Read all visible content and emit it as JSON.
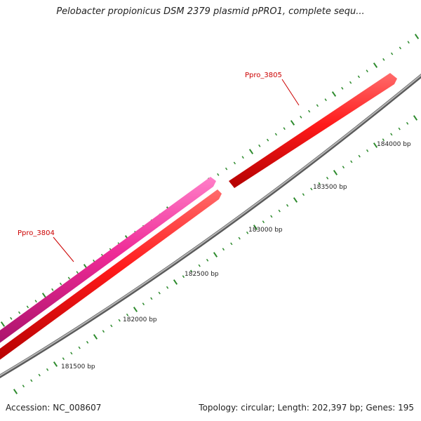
{
  "title": "Pelobacter propionicus DSM 2379 plasmid pPRO1, complete sequ...",
  "footer": {
    "accession": "Accession: NC_008607",
    "summary": "Topology: circular; Length: 202,397 bp; Genes: 195"
  },
  "colors": {
    "background": "#ffffff",
    "backbone": "#8c8c8c",
    "tick": "#2e8b2e",
    "gene_forward": "#ff1a1a",
    "gene_reverse": "#ee2a96",
    "gene_label": "#cc0000"
  },
  "scale_ticks": [
    {
      "position_bp": 181500,
      "label": "181500 bp"
    },
    {
      "position_bp": 182000,
      "label": "182000 bp"
    },
    {
      "position_bp": 182500,
      "label": "182500 bp"
    },
    {
      "position_bp": 183000,
      "label": "183000 bp"
    },
    {
      "position_bp": 183500,
      "label": "183500 bp"
    },
    {
      "position_bp": 184000,
      "label": "184000 bp"
    }
  ],
  "genes": [
    {
      "name": "Ppro_3804",
      "strand": "reverse",
      "label": "Ppro_3804"
    },
    {
      "name": "Ppro_3805",
      "strand": "forward",
      "label": "Ppro_3805"
    }
  ]
}
